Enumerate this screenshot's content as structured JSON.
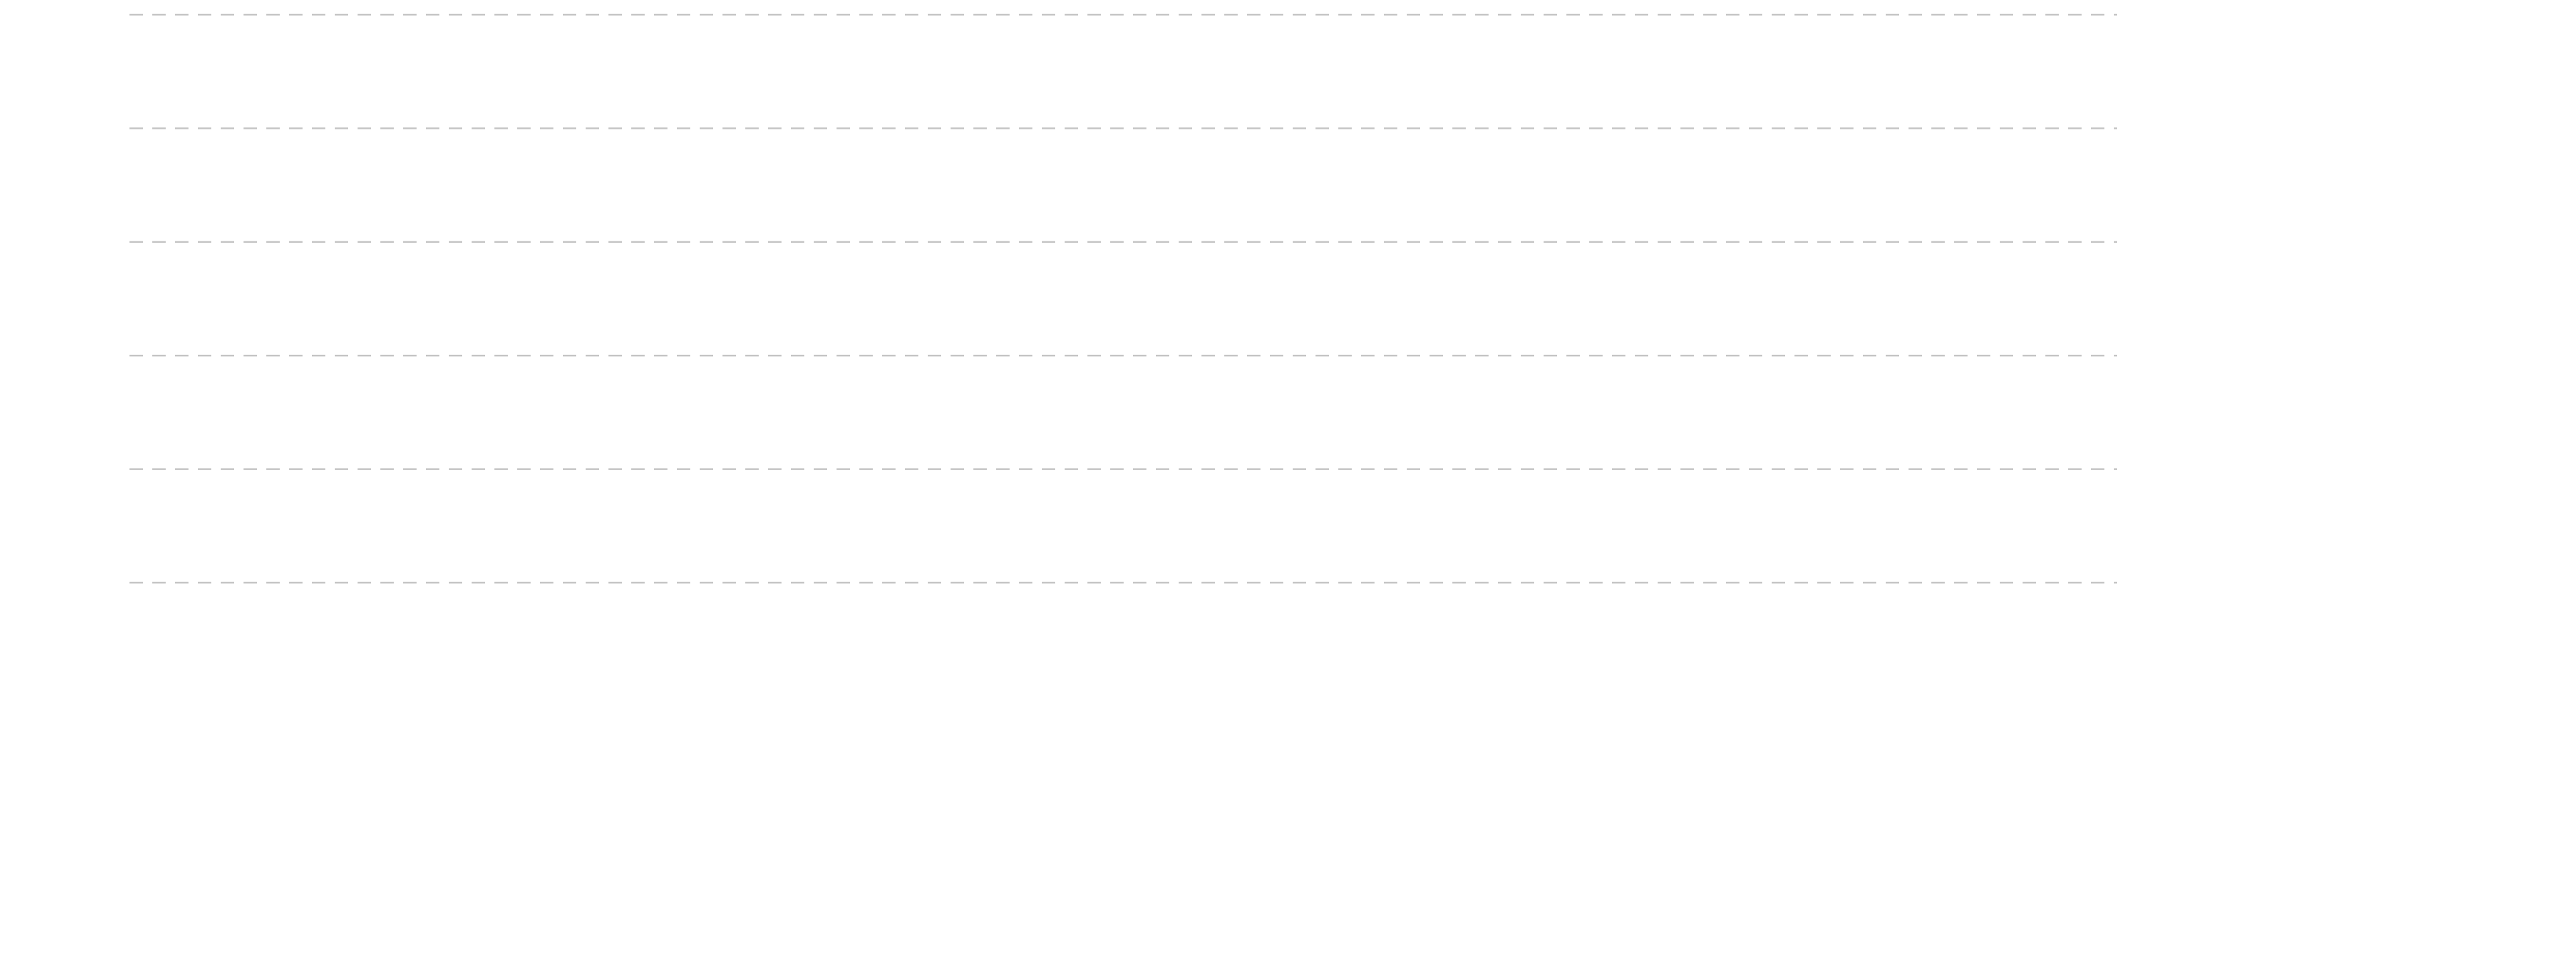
{
  "grid": true
}
